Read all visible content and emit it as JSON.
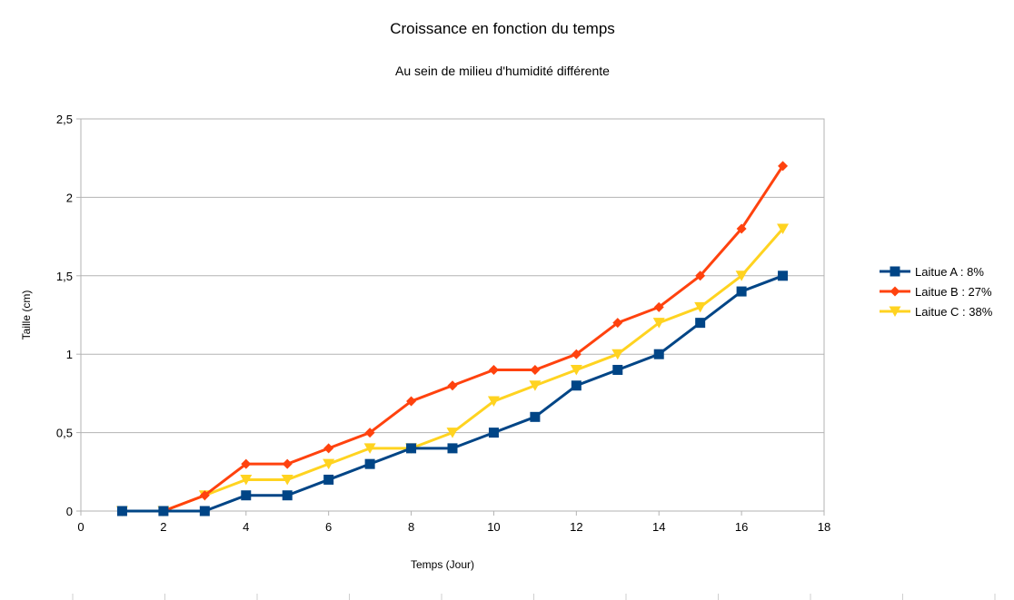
{
  "chart_data": {
    "type": "line",
    "title": "Croissance en fonction du temps",
    "subtitle": "Au sein de milieu d'humidité différente",
    "xlabel": "Temps (Jour)",
    "ylabel": "Taille (cm)",
    "xlim": [
      0,
      18
    ],
    "ylim": [
      0,
      2.5
    ],
    "x_ticks": [
      0,
      2,
      4,
      6,
      8,
      10,
      12,
      14,
      16,
      18
    ],
    "x_tick_labels": [
      "0",
      "2",
      "4",
      "6",
      "8",
      "10",
      "12",
      "14",
      "16",
      "18"
    ],
    "y_ticks": [
      0,
      0.5,
      1,
      1.5,
      2,
      2.5
    ],
    "y_tick_labels": [
      "0",
      "0,5",
      "1",
      "1,5",
      "2",
      "2,5"
    ],
    "grid": "horizontal",
    "legend_position": "right",
    "x": [
      1,
      2,
      3,
      4,
      5,
      6,
      7,
      8,
      9,
      10,
      11,
      12,
      13,
      14,
      15,
      16,
      17
    ],
    "series": [
      {
        "name": "Laitue A : 8%",
        "color": "#004586",
        "marker": "square",
        "values": [
          0,
          0,
          0,
          0.1,
          0.1,
          0.2,
          0.3,
          0.4,
          0.4,
          0.5,
          0.6,
          0.8,
          0.9,
          1.0,
          1.2,
          1.4,
          1.5
        ]
      },
      {
        "name": "Laitue B : 27%",
        "color": "#ff420e",
        "marker": "diamond",
        "values": [
          0,
          0,
          0.1,
          0.3,
          0.3,
          0.4,
          0.5,
          0.7,
          0.8,
          0.9,
          0.9,
          1.0,
          1.2,
          1.3,
          1.5,
          1.8,
          2.2
        ]
      },
      {
        "name": "Laitue C : 38%",
        "color": "#ffd320",
        "marker": "triangle-down",
        "values": [
          0,
          0,
          0.1,
          0.2,
          0.2,
          0.3,
          0.4,
          0.4,
          0.5,
          0.7,
          0.8,
          0.9,
          1.0,
          1.2,
          1.3,
          1.5,
          1.8
        ]
      }
    ]
  }
}
